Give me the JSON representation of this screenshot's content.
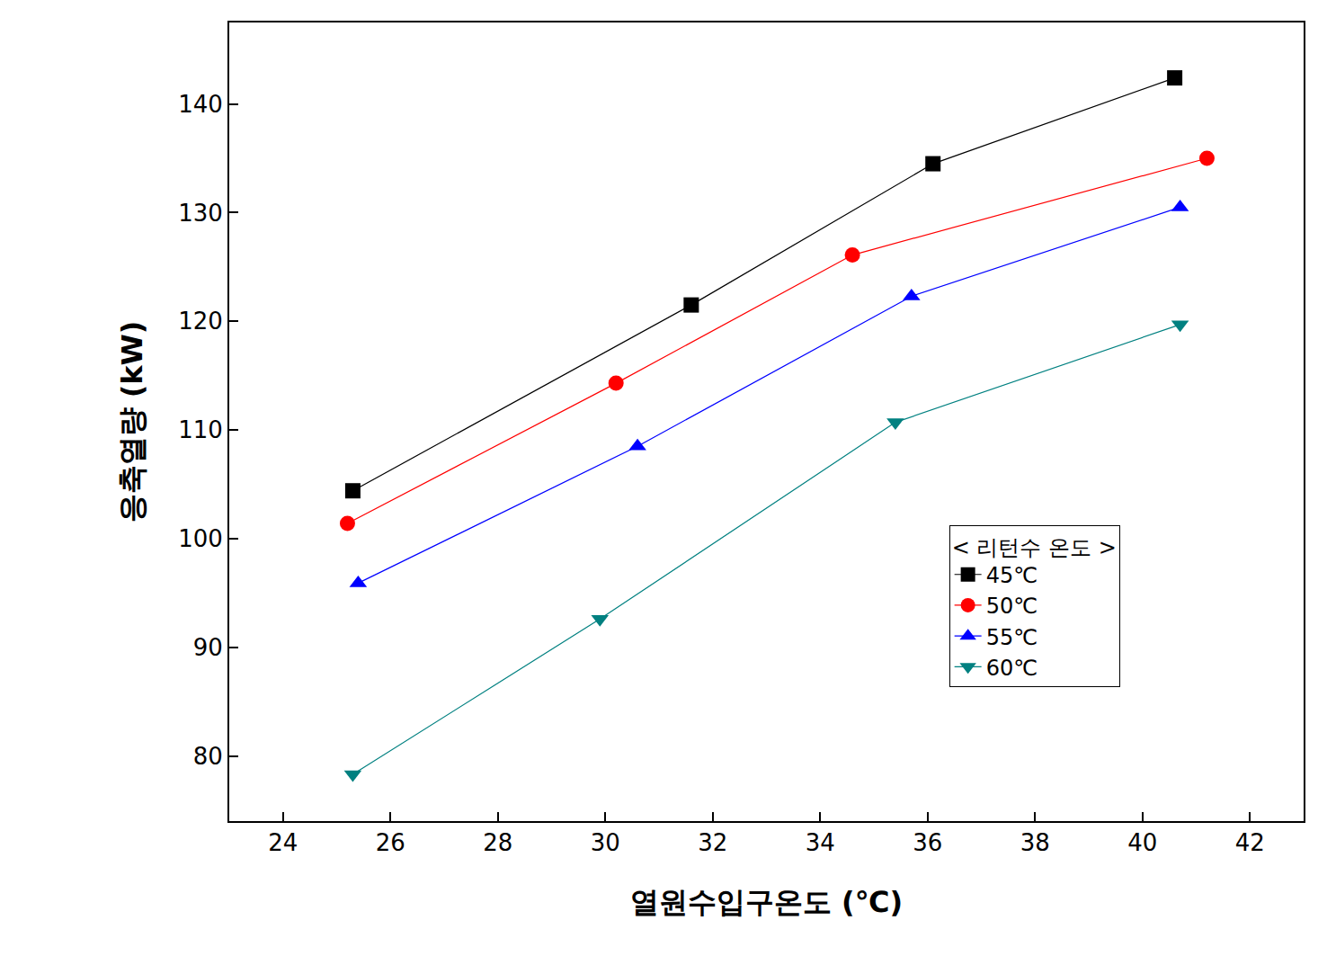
{
  "chart_data": {
    "type": "line",
    "x_label": "열원수입구온도 (℃)",
    "y_label": "응축열량 (kW)",
    "legend_title": "< 리턴수 온도 >",
    "legend": "lower right",
    "grid": false,
    "xlim": [
      23,
      43
    ],
    "xticks": [
      24,
      26,
      28,
      30,
      32,
      34,
      36,
      38,
      40,
      42
    ],
    "ylim": [
      74,
      147.5
    ],
    "yticks": [
      80,
      90,
      100,
      110,
      120,
      130,
      140
    ],
    "series": [
      {
        "name": "45℃",
        "color": "#000000",
        "marker": "square",
        "x": [
          25.3,
          31.6,
          36.1,
          40.6
        ],
        "values": [
          104.4,
          121.5,
          134.5,
          142.4
        ]
      },
      {
        "name": "50℃",
        "color": "#ff0000",
        "marker": "circle",
        "x": [
          25.2,
          30.2,
          34.6,
          41.2
        ],
        "values": [
          101.4,
          114.3,
          126.1,
          135.0
        ]
      },
      {
        "name": "55℃",
        "color": "#0000ff",
        "marker": "triangle-up",
        "x": [
          25.4,
          30.6,
          35.7,
          40.7
        ],
        "values": [
          95.9,
          108.5,
          122.3,
          130.5
        ]
      },
      {
        "name": "60℃",
        "color": "#008080",
        "marker": "triangle-down",
        "x": [
          25.3,
          29.9,
          35.4,
          40.7
        ],
        "values": [
          78.3,
          92.6,
          110.7,
          119.7
        ]
      }
    ]
  }
}
